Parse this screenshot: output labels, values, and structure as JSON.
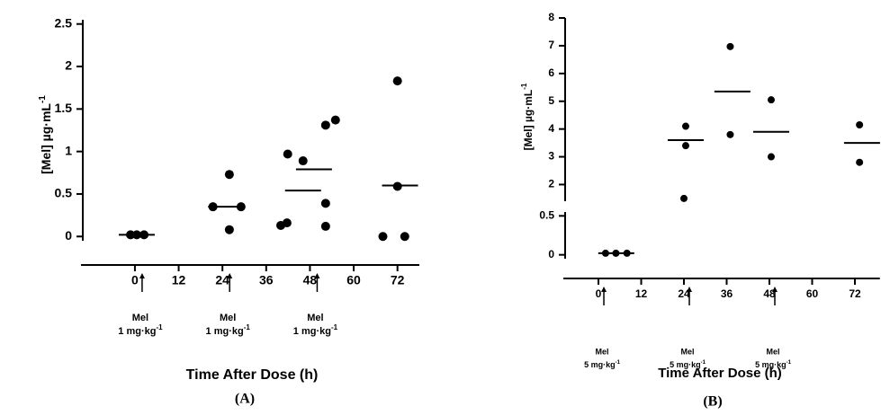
{
  "chart_data": [
    {
      "type": "scatter",
      "panel_label": "(A)",
      "xlabel": "Time After Dose (h)",
      "ylabel": "[Mel] µg·mL",
      "ylabel_sup": "-1",
      "xlim": [
        -14,
        78
      ],
      "xticks": [
        0,
        12,
        24,
        36,
        48,
        60,
        72
      ],
      "y_segments": [
        {
          "ylim": [
            -0.05,
            2.55
          ],
          "yticks": [
            0,
            0.5,
            1,
            1.5,
            2,
            2.5
          ]
        }
      ],
      "series": [
        {
          "marker": "dot",
          "color": "#000000",
          "x": [
            -1.2,
            0.5,
            2.5,
            21.4,
            25.9,
            25.9,
            29.1,
            41.9,
            46.1,
            40.0,
            41.7,
            52.3,
            55.0,
            52.3,
            52.3,
            68.0,
            72.0,
            72.0,
            74.0
          ],
          "values": [
            0.02,
            0.02,
            0.02,
            0.35,
            0.73,
            0.08,
            0.35,
            0.97,
            0.89,
            0.13,
            0.16,
            1.31,
            1.37,
            0.39,
            0.12,
            0.0,
            1.83,
            0.59,
            0.0
          ]
        },
        {
          "marker": "dash",
          "color": "#000000",
          "x": [
            0.5,
            25,
            46.1,
            49.1,
            72.7
          ],
          "values": [
            0.02,
            0.35,
            0.54,
            0.79,
            0.6
          ]
        }
      ],
      "annotations": [
        {
          "x": 0,
          "lines": [
            "Mel",
            "1 mg·kg"
          ],
          "sup": "-1"
        },
        {
          "x": 24,
          "lines": [
            "Mel",
            "1 mg·kg"
          ],
          "sup": "-1"
        },
        {
          "x": 48,
          "lines": [
            "Mel",
            "1 mg·kg"
          ],
          "sup": "-1"
        }
      ]
    },
    {
      "type": "scatter",
      "panel_label": "(B)",
      "xlabel": "Time After Dose (h)",
      "ylabel": "[Mel] µg·mL",
      "ylabel_sup": "-1",
      "xlim": [
        -9,
        79
      ],
      "xticks": [
        0,
        12,
        24,
        36,
        48,
        60,
        72
      ],
      "y_segments": [
        {
          "ylim": [
            -0.05,
            0.55
          ],
          "yticks": [
            0,
            0.5
          ]
        },
        {
          "ylim": [
            1.4,
            8
          ],
          "yticks": [
            2,
            3,
            4,
            5,
            6,
            7,
            8
          ]
        }
      ],
      "series": [
        {
          "marker": "dot",
          "color": "#000000",
          "x": [
            2,
            4.9,
            8,
            24.5,
            24.5,
            24,
            37,
            37,
            48.5,
            48.5,
            73.3,
            73.3
          ],
          "values": [
            0.02,
            0.02,
            0.02,
            4.1,
            3.4,
            1.5,
            6.97,
            3.8,
            5.05,
            3.0,
            4.15,
            2.8
          ]
        },
        {
          "marker": "dash",
          "color": "#000000",
          "x": [
            5,
            24.5,
            37.6,
            48.5,
            74
          ],
          "values": [
            0.02,
            3.6,
            5.35,
            3.9,
            3.5
          ]
        }
      ],
      "annotations": [
        {
          "x": 0,
          "lines": [
            "Mel",
            "5 mg·kg"
          ],
          "sup": "-1"
        },
        {
          "x": 24,
          "lines": [
            "Mel",
            "5 mg·kg"
          ],
          "sup": "-1"
        },
        {
          "x": 48,
          "lines": [
            "Mel",
            "5 mg·kg"
          ],
          "sup": "-1"
        }
      ]
    }
  ]
}
